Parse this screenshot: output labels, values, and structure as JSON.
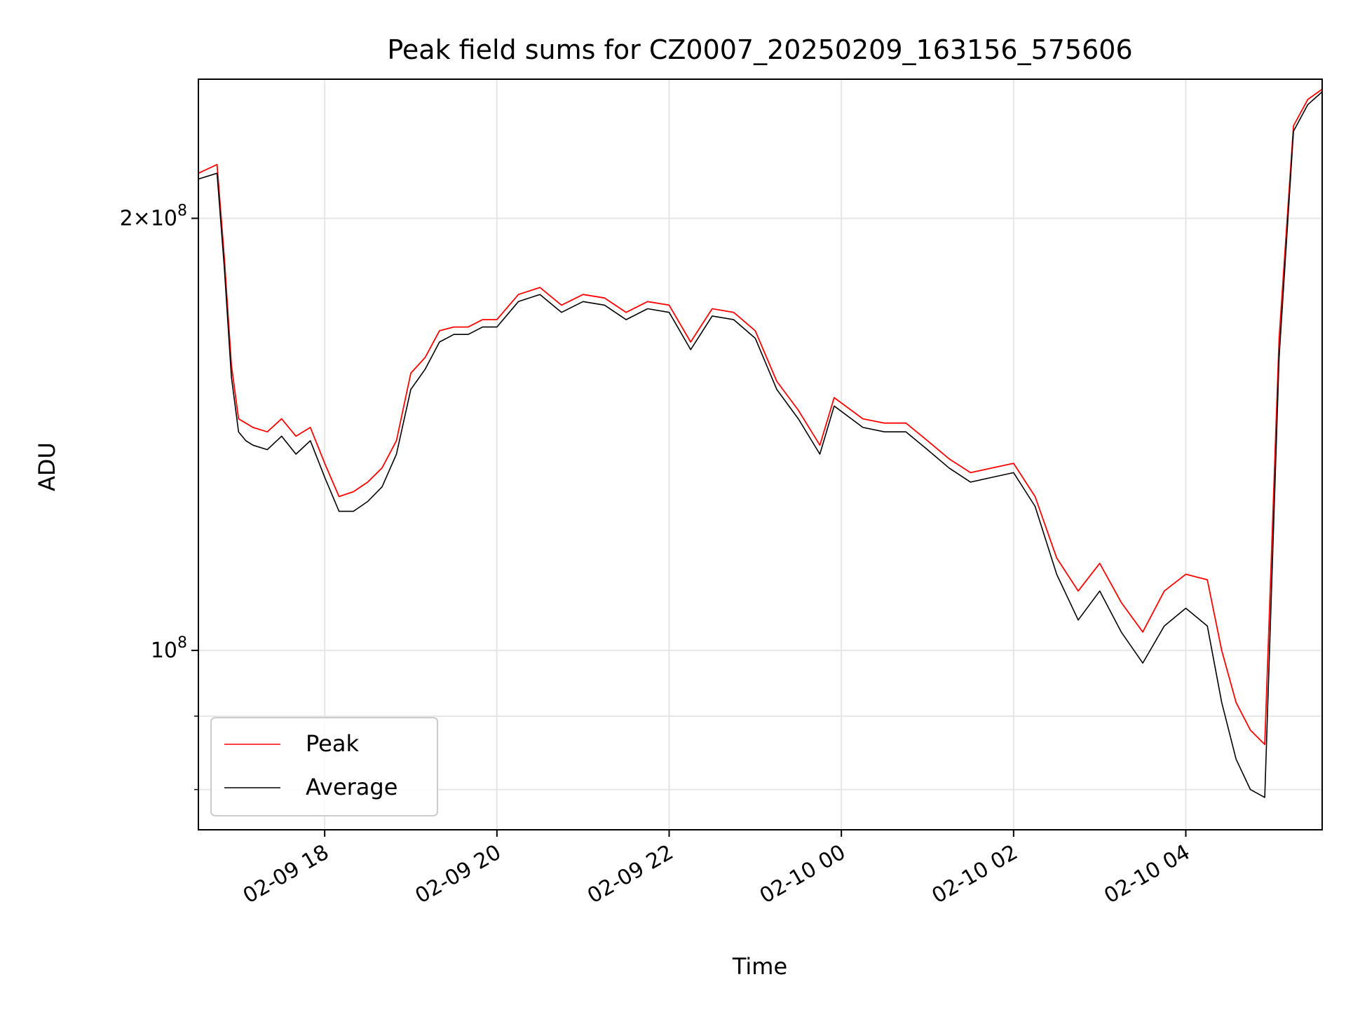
{
  "chart_data": {
    "type": "line",
    "title": "Peak field sums for CZ0007_20250209_163156_575606",
    "xlabel": "Time",
    "ylabel": "ADU",
    "y_scale": "log",
    "grid": true,
    "legend_position": "lower-left",
    "xlim": [
      "2025-02-09 16:32",
      "2025-02-10 05:35"
    ],
    "ylim": [
      75000000,
      250000000
    ],
    "x_ticks": [
      {
        "value": "2025-02-09 18:00",
        "label": "02-09 18"
      },
      {
        "value": "2025-02-09 20:00",
        "label": "02-09 20"
      },
      {
        "value": "2025-02-09 22:00",
        "label": "02-09 22"
      },
      {
        "value": "2025-02-10 00:00",
        "label": "02-10 00"
      },
      {
        "value": "2025-02-10 02:00",
        "label": "02-10 02"
      },
      {
        "value": "2025-02-10 04:00",
        "label": "02-10 04"
      }
    ],
    "y_ticks_major": [
      {
        "value": 100000000,
        "mantissa": "",
        "exp": "8"
      },
      {
        "value": 200000000,
        "mantissa": "2",
        "exp": "8"
      }
    ],
    "y_ticks_minor": [
      80000000,
      90000000
    ],
    "series": [
      {
        "name": "Average",
        "color": "#000000",
        "x": [
          "2025-02-09 16:32",
          "2025-02-09 16:45",
          "2025-02-09 16:50",
          "2025-02-09 16:55",
          "2025-02-09 17:00",
          "2025-02-09 17:05",
          "2025-02-09 17:10",
          "2025-02-09 17:20",
          "2025-02-09 17:30",
          "2025-02-09 17:40",
          "2025-02-09 17:50",
          "2025-02-09 18:00",
          "2025-02-09 18:10",
          "2025-02-09 18:20",
          "2025-02-09 18:30",
          "2025-02-09 18:40",
          "2025-02-09 18:50",
          "2025-02-09 19:00",
          "2025-02-09 19:10",
          "2025-02-09 19:20",
          "2025-02-09 19:30",
          "2025-02-09 19:40",
          "2025-02-09 19:50",
          "2025-02-09 20:00",
          "2025-02-09 20:15",
          "2025-02-09 20:30",
          "2025-02-09 20:45",
          "2025-02-09 21:00",
          "2025-02-09 21:15",
          "2025-02-09 21:30",
          "2025-02-09 21:45",
          "2025-02-09 22:00",
          "2025-02-09 22:15",
          "2025-02-09 22:30",
          "2025-02-09 22:45",
          "2025-02-09 23:00",
          "2025-02-09 23:15",
          "2025-02-09 23:30",
          "2025-02-09 23:45",
          "2025-02-09 23:55",
          "2025-02-10 00:15",
          "2025-02-10 00:30",
          "2025-02-10 00:45",
          "2025-02-10 01:00",
          "2025-02-10 01:15",
          "2025-02-10 01:30",
          "2025-02-10 01:45",
          "2025-02-10 02:00",
          "2025-02-10 02:15",
          "2025-02-10 02:30",
          "2025-02-10 02:45",
          "2025-02-10 03:00",
          "2025-02-10 03:15",
          "2025-02-10 03:30",
          "2025-02-10 03:45",
          "2025-02-10 04:00",
          "2025-02-10 04:15",
          "2025-02-10 04:25",
          "2025-02-10 04:35",
          "2025-02-10 04:45",
          "2025-02-10 04:55",
          "2025-02-10 05:05",
          "2025-02-10 05:15",
          "2025-02-10 05:25",
          "2025-02-10 05:35"
        ],
        "y": [
          213000000,
          215000000,
          185000000,
          155000000,
          142000000,
          140000000,
          139000000,
          138000000,
          141000000,
          137000000,
          140000000,
          132000000,
          125000000,
          125000000,
          127000000,
          130000000,
          137000000,
          152000000,
          157000000,
          164000000,
          166000000,
          166000000,
          168000000,
          168000000,
          175000000,
          177000000,
          172000000,
          175000000,
          174000000,
          170000000,
          173000000,
          172000000,
          162000000,
          171000000,
          170000000,
          165000000,
          152000000,
          145000000,
          137000000,
          148000000,
          143000000,
          142000000,
          142000000,
          138000000,
          134000000,
          131000000,
          132000000,
          133000000,
          126000000,
          113000000,
          105000000,
          110000000,
          103000000,
          98000000,
          104000000,
          107000000,
          104000000,
          92000000,
          84000000,
          80000000,
          79000000,
          160000000,
          230000000,
          240000000,
          245000000
        ]
      },
      {
        "name": "Peak",
        "color": "#ff0000",
        "x": [
          "2025-02-09 16:32",
          "2025-02-09 16:45",
          "2025-02-09 16:50",
          "2025-02-09 16:55",
          "2025-02-09 17:00",
          "2025-02-09 17:05",
          "2025-02-09 17:10",
          "2025-02-09 17:20",
          "2025-02-09 17:30",
          "2025-02-09 17:40",
          "2025-02-09 17:50",
          "2025-02-09 18:00",
          "2025-02-09 18:10",
          "2025-02-09 18:20",
          "2025-02-09 18:30",
          "2025-02-09 18:40",
          "2025-02-09 18:50",
          "2025-02-09 19:00",
          "2025-02-09 19:10",
          "2025-02-09 19:20",
          "2025-02-09 19:30",
          "2025-02-09 19:40",
          "2025-02-09 19:50",
          "2025-02-09 20:00",
          "2025-02-09 20:15",
          "2025-02-09 20:30",
          "2025-02-09 20:45",
          "2025-02-09 21:00",
          "2025-02-09 21:15",
          "2025-02-09 21:30",
          "2025-02-09 21:45",
          "2025-02-09 22:00",
          "2025-02-09 22:15",
          "2025-02-09 22:30",
          "2025-02-09 22:45",
          "2025-02-09 23:00",
          "2025-02-09 23:15",
          "2025-02-09 23:30",
          "2025-02-09 23:45",
          "2025-02-09 23:55",
          "2025-02-10 00:15",
          "2025-02-10 00:30",
          "2025-02-10 00:45",
          "2025-02-10 01:00",
          "2025-02-10 01:15",
          "2025-02-10 01:30",
          "2025-02-10 01:45",
          "2025-02-10 02:00",
          "2025-02-10 02:15",
          "2025-02-10 02:30",
          "2025-02-10 02:45",
          "2025-02-10 03:00",
          "2025-02-10 03:15",
          "2025-02-10 03:30",
          "2025-02-10 03:45",
          "2025-02-10 04:00",
          "2025-02-10 04:15",
          "2025-02-10 04:25",
          "2025-02-10 04:35",
          "2025-02-10 04:45",
          "2025-02-10 04:55",
          "2025-02-10 05:05",
          "2025-02-10 05:15",
          "2025-02-10 05:25",
          "2025-02-10 05:35"
        ],
        "y": [
          215000000,
          218000000,
          188000000,
          158000000,
          145000000,
          144000000,
          143000000,
          142000000,
          145000000,
          141000000,
          143000000,
          135000000,
          128000000,
          129000000,
          131000000,
          134000000,
          140000000,
          156000000,
          160000000,
          167000000,
          168000000,
          168000000,
          170000000,
          170000000,
          177000000,
          179000000,
          174000000,
          177000000,
          176000000,
          172000000,
          175000000,
          174000000,
          164000000,
          173000000,
          172000000,
          167000000,
          154000000,
          147000000,
          139000000,
          150000000,
          145000000,
          144000000,
          144000000,
          140000000,
          136000000,
          133000000,
          134000000,
          135000000,
          128000000,
          116000000,
          110000000,
          115000000,
          108000000,
          103000000,
          110000000,
          113000000,
          112000000,
          100000000,
          92000000,
          88000000,
          86000000,
          165000000,
          232000000,
          242000000,
          246000000
        ]
      }
    ]
  }
}
